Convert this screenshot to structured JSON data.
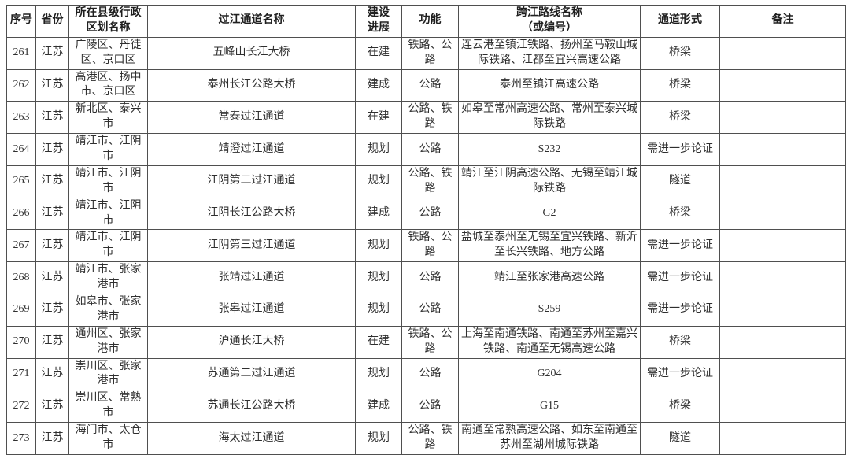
{
  "colors": {
    "background": "#ffffff",
    "border": "#4f4f4f",
    "text": "#2f2f2f"
  },
  "table": {
    "columns": [
      {
        "key": "no",
        "label": "序号"
      },
      {
        "key": "province",
        "label": "省份"
      },
      {
        "key": "region",
        "label": "所在县级行政\n区划名称"
      },
      {
        "key": "name",
        "label": "过江通道名称"
      },
      {
        "key": "progress",
        "label": "建设\n进展"
      },
      {
        "key": "func",
        "label": "功能"
      },
      {
        "key": "route",
        "label": "跨江路线名称\n（或编号）"
      },
      {
        "key": "form",
        "label": "通道形式"
      },
      {
        "key": "note",
        "label": "备注"
      }
    ],
    "rows": [
      {
        "no": "261",
        "province": "江苏",
        "region": "广陵区、丹徒区、京口区",
        "name": "五峰山长江大桥",
        "progress": "在建",
        "func": "铁路、公路",
        "route": "连云港至镇江铁路、扬州至马鞍山城际铁路、江都至宜兴高速公路",
        "form": "桥梁",
        "note": ""
      },
      {
        "no": "262",
        "province": "江苏",
        "region": "高港区、扬中市、京口区",
        "name": "泰州长江公路大桥",
        "progress": "建成",
        "func": "公路",
        "route": "泰州至镇江高速公路",
        "form": "桥梁",
        "note": ""
      },
      {
        "no": "263",
        "province": "江苏",
        "region": "新北区、泰兴市",
        "name": "常泰过江通道",
        "progress": "在建",
        "func": "公路、铁路",
        "route": "如皋至常州高速公路、常州至泰兴城际铁路",
        "form": "桥梁",
        "note": ""
      },
      {
        "no": "264",
        "province": "江苏",
        "region": "靖江市、江阴市",
        "name": "靖澄过江通道",
        "progress": "规划",
        "func": "公路",
        "route": "S232",
        "form": "需进一步论证",
        "note": ""
      },
      {
        "no": "265",
        "province": "江苏",
        "region": "靖江市、江阴市",
        "name": "江阴第二过江通道",
        "progress": "规划",
        "func": "公路、铁路",
        "route": "靖江至江阴高速公路、无锡至靖江城际铁路",
        "form": "隧道",
        "note": ""
      },
      {
        "no": "266",
        "province": "江苏",
        "region": "靖江市、江阴市",
        "name": "江阴长江公路大桥",
        "progress": "建成",
        "func": "公路",
        "route": "G2",
        "form": "桥梁",
        "note": ""
      },
      {
        "no": "267",
        "province": "江苏",
        "region": "靖江市、江阴市",
        "name": "江阴第三过江通道",
        "progress": "规划",
        "func": "铁路、公路",
        "route": "盐城至泰州至无锡至宜兴铁路、新沂至长兴铁路、地方公路",
        "form": "需进一步论证",
        "note": ""
      },
      {
        "no": "268",
        "province": "江苏",
        "region": "靖江市、张家港市",
        "name": "张靖过江通道",
        "progress": "规划",
        "func": "公路",
        "route": "靖江至张家港高速公路",
        "form": "需进一步论证",
        "note": ""
      },
      {
        "no": "269",
        "province": "江苏",
        "region": "如皋市、张家港市",
        "name": "张皋过江通道",
        "progress": "规划",
        "func": "公路",
        "route": "S259",
        "form": "需进一步论证",
        "note": ""
      },
      {
        "no": "270",
        "province": "江苏",
        "region": "通州区、张家港市",
        "name": "沪通长江大桥",
        "progress": "在建",
        "func": "铁路、公路",
        "route": "上海至南通铁路、南通至苏州至嘉兴铁路、南通至无锡高速公路",
        "form": "桥梁",
        "note": ""
      },
      {
        "no": "271",
        "province": "江苏",
        "region": "崇川区、张家港市",
        "name": "苏通第二过江通道",
        "progress": "规划",
        "func": "公路",
        "route": "G204",
        "form": "需进一步论证",
        "note": ""
      },
      {
        "no": "272",
        "province": "江苏",
        "region": "崇川区、常熟市",
        "name": "苏通长江公路大桥",
        "progress": "建成",
        "func": "公路",
        "route": "G15",
        "form": "桥梁",
        "note": ""
      },
      {
        "no": "273",
        "province": "江苏",
        "region": "海门市、太仓市",
        "name": "海太过江通道",
        "progress": "规划",
        "func": "公路、铁路",
        "route": "南通至常熟高速公路、如东至南通至苏州至湖州城际铁路",
        "form": "隧道",
        "note": ""
      }
    ]
  }
}
